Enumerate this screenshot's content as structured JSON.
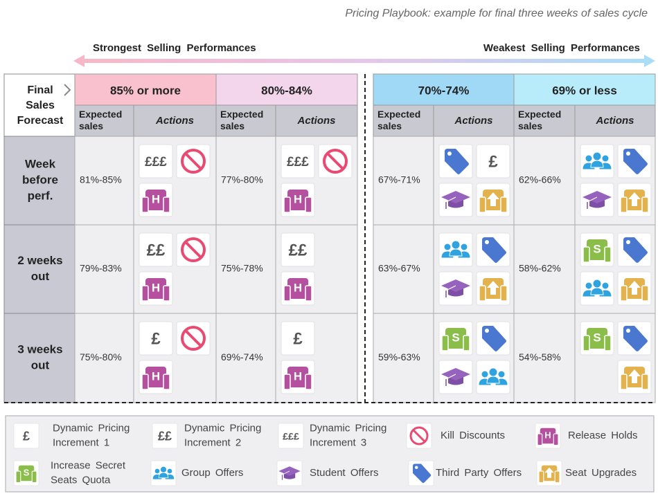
{
  "title": "Pricing Playbook: example for final three weeks of sales cycle",
  "arrow": {
    "left": "Strongest Selling Performances",
    "right": "Weakest Selling Performances"
  },
  "table": {
    "corner": [
      "Final",
      "Sales",
      "Forecast"
    ],
    "subheaders": {
      "expected": [
        "Expected",
        "sales"
      ],
      "actions": "Actions"
    },
    "columns": [
      "85% or more",
      "80%-84%",
      "70%-74%",
      "69% or less"
    ],
    "rows": [
      {
        "label": [
          "Week",
          "before",
          "perf."
        ],
        "expected": [
          "81%-85%",
          "77%-80%",
          "67%-71%",
          "62%-66%"
        ]
      },
      {
        "label": [
          "2 weeks",
          "out"
        ],
        "expected": [
          "79%-83%",
          "75%-78%",
          "63%-67%",
          "58%-62%"
        ]
      },
      {
        "label": [
          "3 weeks",
          "out"
        ],
        "expected": [
          "75%-80%",
          "69%-74%",
          "59%-63%",
          "54%-58%"
        ]
      }
    ]
  },
  "icons": {
    "p1": "£",
    "p2": "££",
    "p3": "£££",
    "hold": "H",
    "secret": "S"
  },
  "legend": [
    [
      "Dynamic Pricing",
      "Increment 1"
    ],
    [
      "Dynamic Pricing",
      "Increment 2"
    ],
    [
      "Dynamic Pricing",
      "Increment 3"
    ],
    [
      "Kill Discounts"
    ],
    [
      "Release Holds"
    ],
    [
      "Increase Secret",
      "Seats Quota"
    ],
    [
      "Group Offers"
    ],
    [
      "Student Offers"
    ],
    [
      "Third Party Offers"
    ],
    [
      "Seat Upgrades"
    ]
  ]
}
